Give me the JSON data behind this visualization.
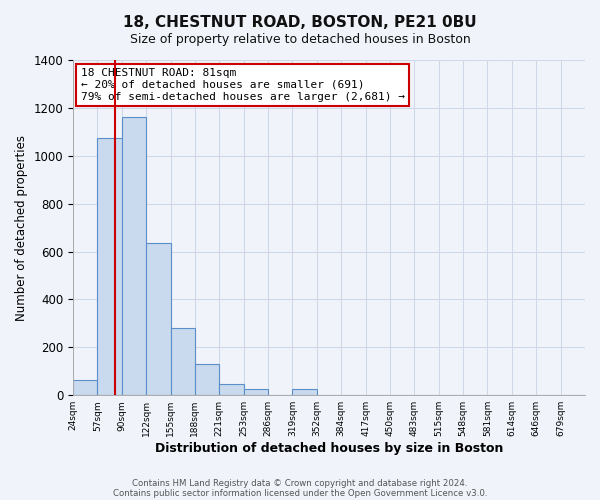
{
  "title": "18, CHESTNUT ROAD, BOSTON, PE21 0BU",
  "subtitle": "Size of property relative to detached houses in Boston",
  "xlabel": "Distribution of detached houses by size in Boston",
  "ylabel": "Number of detached properties",
  "bin_labels": [
    "24sqm",
    "57sqm",
    "90sqm",
    "122sqm",
    "155sqm",
    "188sqm",
    "221sqm",
    "253sqm",
    "286sqm",
    "319sqm",
    "352sqm",
    "384sqm",
    "417sqm",
    "450sqm",
    "483sqm",
    "515sqm",
    "548sqm",
    "581sqm",
    "614sqm",
    "646sqm",
    "679sqm"
  ],
  "bar_heights": [
    65,
    1075,
    1160,
    635,
    280,
    130,
    47,
    25,
    0,
    25,
    0,
    0,
    0,
    0,
    0,
    0,
    0,
    0,
    0,
    0,
    0
  ],
  "bar_color": "#c9d9ee",
  "bar_edge_color": "#5b8fca",
  "ylim": [
    0,
    1400
  ],
  "yticks": [
    0,
    200,
    400,
    600,
    800,
    1000,
    1200,
    1400
  ],
  "annotation_title": "18 CHESTNUT ROAD: 81sqm",
  "annotation_line1": "← 20% of detached houses are smaller (691)",
  "annotation_line2": "79% of semi-detached houses are larger (2,681) →",
  "annotation_box_facecolor": "#ffffff",
  "annotation_box_edgecolor": "#cc0000",
  "vline_color": "#cc0000",
  "vline_pos": 1.727,
  "grid_color": "#d0d8e8",
  "footer1": "Contains HM Land Registry data © Crown copyright and database right 2024.",
  "footer2": "Contains public sector information licensed under the Open Government Licence v3.0.",
  "bg_color": "#f0f4fa"
}
